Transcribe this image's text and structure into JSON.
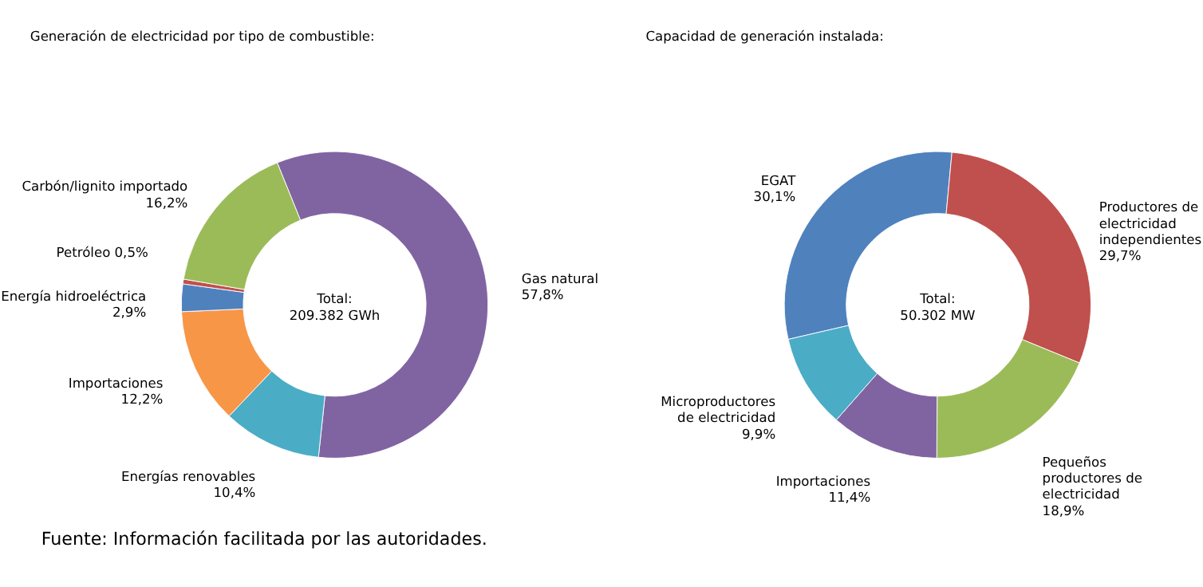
{
  "chart_data": [
    {
      "type": "donut",
      "title": "Generación de electricidad por tipo de combustible:",
      "categories": [
        "Gas natural",
        "Energías renovables",
        "Importaciones",
        "Energía hidroeléctrica",
        "Petróleo",
        "Carbón/lignito importado"
      ],
      "values": [
        57.8,
        10.4,
        12.2,
        2.9,
        0.5,
        16.2
      ],
      "colors": [
        "#8064a2",
        "#4bacc6",
        "#f79646",
        "#4f81bd",
        "#c0504d",
        "#9bbb59"
      ],
      "value_labels": [
        "57,8%",
        "10,4%",
        "12,2%",
        "2,9%",
        "0,5%",
        "16,2%"
      ],
      "legend": false,
      "annotations": [
        "Total:\n209.382 GWh",
        "Fuente:     Información facilitada por las autoridades."
      ]
    },
    {
      "type": "donut",
      "title": "Capacidad de generación instalada:",
      "categories": [
        "EGAT",
        "Productores de electricidad independientes",
        "Pequeños productores de electricidad",
        "Importaciones",
        "Microproductores de electricidad"
      ],
      "values": [
        30.1,
        29.7,
        18.9,
        11.4,
        9.9
      ],
      "colors": [
        "#4f81bd",
        "#c0504d",
        "#9bbb59",
        "#8064a2",
        "#4bacc6"
      ],
      "value_labels": [
        "30,1%",
        "29,7%",
        "18,9%",
        "11,4%",
        "9,9%"
      ],
      "legend": false,
      "annotations": [
        "Total:\n50.302 MW"
      ]
    }
  ]
}
